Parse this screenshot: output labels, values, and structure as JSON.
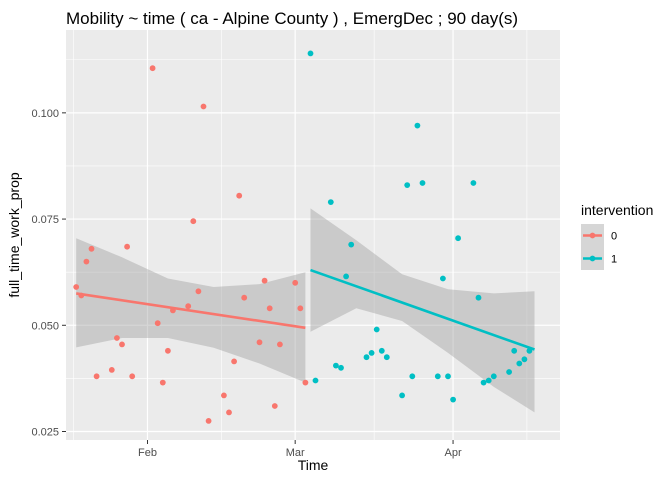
{
  "chart_data": {
    "type": "scatter",
    "title": "Mobility ~ time ( ca - Alpine County ) , EmergDec ; 90  day(s)",
    "xlabel": "Time",
    "ylabel": "full_time_work_prop",
    "x_ticks": [
      {
        "label": "Feb",
        "date": "2020-02-01"
      },
      {
        "label": "Mar",
        "date": "2020-03-01"
      },
      {
        "label": "Apr",
        "date": "2020-04-01"
      }
    ],
    "y_ticks": [
      "0.025",
      "0.050",
      "0.075",
      "0.100"
    ],
    "xlim": [
      "2020-01-16",
      "2020-04-22"
    ],
    "ylim": [
      0.023,
      0.1195
    ],
    "grid": true,
    "legend": {
      "title": "intervention",
      "position": "right"
    },
    "colors": {
      "0": "#F8766D",
      "1": "#00BFC4",
      "band": "#999999"
    },
    "series": [
      {
        "name": "0",
        "points": [
          [
            "2020-01-18",
            0.059
          ],
          [
            "2020-01-19",
            0.057
          ],
          [
            "2020-01-20",
            0.065
          ],
          [
            "2020-01-21",
            0.068
          ],
          [
            "2020-01-22",
            0.038
          ],
          [
            "2020-01-25",
            0.0395
          ],
          [
            "2020-01-26",
            0.047
          ],
          [
            "2020-01-27",
            0.0455
          ],
          [
            "2020-01-28",
            0.0685
          ],
          [
            "2020-01-29",
            0.038
          ],
          [
            "2020-02-02",
            0.1105
          ],
          [
            "2020-02-03",
            0.0505
          ],
          [
            "2020-02-04",
            0.0365
          ],
          [
            "2020-02-05",
            0.044
          ],
          [
            "2020-02-06",
            0.0535
          ],
          [
            "2020-02-09",
            0.0545
          ],
          [
            "2020-02-10",
            0.0745
          ],
          [
            "2020-02-11",
            0.058
          ],
          [
            "2020-02-12",
            0.1015
          ],
          [
            "2020-02-13",
            0.0275
          ],
          [
            "2020-02-16",
            0.0335
          ],
          [
            "2020-02-17",
            0.0295
          ],
          [
            "2020-02-18",
            0.0415
          ],
          [
            "2020-02-19",
            0.0805
          ],
          [
            "2020-02-20",
            0.0565
          ],
          [
            "2020-02-23",
            0.046
          ],
          [
            "2020-02-24",
            0.0605
          ],
          [
            "2020-02-25",
            0.054
          ],
          [
            "2020-02-26",
            0.031
          ],
          [
            "2020-02-27",
            0.0455
          ],
          [
            "2020-03-01",
            0.06
          ],
          [
            "2020-03-02",
            0.054
          ],
          [
            "2020-03-03",
            0.0365
          ]
        ],
        "fit": {
          "x": [
            "2020-01-18",
            "2020-03-03"
          ],
          "y": [
            0.0575,
            0.0494
          ]
        },
        "band": {
          "x": [
            "2020-01-18",
            "2020-01-27",
            "2020-02-05",
            "2020-02-14",
            "2020-02-23",
            "2020-03-03"
          ],
          "lower": [
            0.0448,
            0.047,
            0.047,
            0.0447,
            0.041,
            0.0365
          ],
          "upper": [
            0.0705,
            0.066,
            0.061,
            0.059,
            0.0597,
            0.0625
          ]
        }
      },
      {
        "name": "1",
        "points": [
          [
            "2020-03-04",
            0.114
          ],
          [
            "2020-03-05",
            0.037
          ],
          [
            "2020-03-08",
            0.079
          ],
          [
            "2020-03-09",
            0.0405
          ],
          [
            "2020-03-10",
            0.04
          ],
          [
            "2020-03-11",
            0.0615
          ],
          [
            "2020-03-12",
            0.069
          ],
          [
            "2020-03-15",
            0.0425
          ],
          [
            "2020-03-16",
            0.0435
          ],
          [
            "2020-03-17",
            0.049
          ],
          [
            "2020-03-18",
            0.044
          ],
          [
            "2020-03-19",
            0.0425
          ],
          [
            "2020-03-22",
            0.0335
          ],
          [
            "2020-03-23",
            0.083
          ],
          [
            "2020-03-24",
            0.038
          ],
          [
            "2020-03-25",
            0.097
          ],
          [
            "2020-03-26",
            0.0835
          ],
          [
            "2020-03-29",
            0.038
          ],
          [
            "2020-03-30",
            0.061
          ],
          [
            "2020-03-31",
            0.038
          ],
          [
            "2020-04-01",
            0.0325
          ],
          [
            "2020-04-02",
            0.0705
          ],
          [
            "2020-04-05",
            0.0835
          ],
          [
            "2020-04-06",
            0.0565
          ],
          [
            "2020-04-07",
            0.0365
          ],
          [
            "2020-04-08",
            0.037
          ],
          [
            "2020-04-09",
            0.038
          ],
          [
            "2020-04-12",
            0.039
          ],
          [
            "2020-04-13",
            0.044
          ],
          [
            "2020-04-14",
            0.041
          ],
          [
            "2020-04-15",
            0.042
          ],
          [
            "2020-04-16",
            0.044
          ]
        ],
        "fit": {
          "x": [
            "2020-03-04",
            "2020-04-17"
          ],
          "y": [
            0.063,
            0.0443
          ]
        },
        "band": {
          "x": [
            "2020-03-04",
            "2020-03-13",
            "2020-03-22",
            "2020-03-31",
            "2020-04-09",
            "2020-04-17"
          ],
          "lower": [
            0.0485,
            0.054,
            0.051,
            0.0435,
            0.0355,
            0.0295
          ],
          "upper": [
            0.0775,
            0.07,
            0.062,
            0.0585,
            0.0575,
            0.058
          ]
        }
      }
    ]
  }
}
